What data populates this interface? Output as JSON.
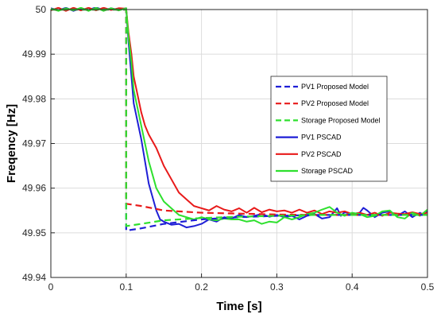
{
  "chart_data": {
    "type": "line",
    "xlabel": "Time [s]",
    "ylabel": "Freqency [Hz]",
    "xlim": [
      0,
      0.5
    ],
    "ylim": [
      49.94,
      50
    ],
    "xticks": [
      0,
      0.1,
      0.2,
      0.3,
      0.4,
      0.5
    ],
    "xtick_labels": [
      "0",
      "0.1",
      "0.2",
      "0.3",
      "0.4",
      "0.5"
    ],
    "yticks": [
      49.94,
      49.95,
      49.96,
      49.97,
      49.98,
      49.99,
      50
    ],
    "ytick_labels": [
      "49.94",
      "49.95",
      "49.96",
      "49.97",
      "49.98",
      "49.99",
      "50"
    ],
    "grid": true,
    "legend_position": "right",
    "series": [
      {
        "name": "PV1 Proposed Model",
        "color": "#1f1fd6",
        "dash": "dashed",
        "points": [
          [
            0,
            50
          ],
          [
            0.099,
            50
          ],
          [
            0.1,
            50
          ],
          [
            0.1,
            49.9505
          ],
          [
            0.12,
            49.951
          ],
          [
            0.15,
            49.952
          ],
          [
            0.2,
            49.953
          ],
          [
            0.25,
            49.9535
          ],
          [
            0.3,
            49.9538
          ],
          [
            0.35,
            49.954
          ],
          [
            0.4,
            49.954
          ],
          [
            0.45,
            49.954
          ],
          [
            0.5,
            49.954
          ]
        ]
      },
      {
        "name": "PV2 Proposed Model",
        "color": "#e81a1a",
        "dash": "dashed",
        "points": [
          [
            0,
            50
          ],
          [
            0.099,
            50
          ],
          [
            0.1,
            50
          ],
          [
            0.1,
            49.9565
          ],
          [
            0.12,
            49.956
          ],
          [
            0.15,
            49.955
          ],
          [
            0.2,
            49.9545
          ],
          [
            0.25,
            49.9543
          ],
          [
            0.3,
            49.9541
          ],
          [
            0.35,
            49.954
          ],
          [
            0.4,
            49.954
          ],
          [
            0.45,
            49.954
          ],
          [
            0.5,
            49.954
          ]
        ]
      },
      {
        "name": "Storage Proposed Model",
        "color": "#2ee02e",
        "dash": "dashed",
        "points": [
          [
            0,
            50
          ],
          [
            0.099,
            50
          ],
          [
            0.1,
            50
          ],
          [
            0.1,
            49.9515
          ],
          [
            0.12,
            49.952
          ],
          [
            0.15,
            49.9528
          ],
          [
            0.2,
            49.9533
          ],
          [
            0.25,
            49.9536
          ],
          [
            0.3,
            49.9538
          ],
          [
            0.35,
            49.954
          ],
          [
            0.4,
            49.954
          ],
          [
            0.45,
            49.954
          ],
          [
            0.5,
            49.954
          ]
        ]
      },
      {
        "name": "PV1 PSCAD",
        "color": "#1f1fd6",
        "dash": "solid",
        "points": [
          [
            0,
            50.0003
          ],
          [
            0.01,
            49.9998
          ],
          [
            0.02,
            50.0004
          ],
          [
            0.03,
            49.9997
          ],
          [
            0.04,
            50.0003
          ],
          [
            0.05,
            49.9999
          ],
          [
            0.06,
            50.0005
          ],
          [
            0.07,
            49.9998
          ],
          [
            0.08,
            50.0003
          ],
          [
            0.09,
            49.9999
          ],
          [
            0.1,
            50.0003
          ],
          [
            0.103,
            49.993
          ],
          [
            0.107,
            49.985
          ],
          [
            0.11,
            49.979
          ],
          [
            0.115,
            49.975
          ],
          [
            0.12,
            49.971
          ],
          [
            0.125,
            49.966
          ],
          [
            0.13,
            49.961
          ],
          [
            0.135,
            49.958
          ],
          [
            0.14,
            49.955
          ],
          [
            0.145,
            49.953
          ],
          [
            0.15,
            49.9525
          ],
          [
            0.16,
            49.9518
          ],
          [
            0.17,
            49.952
          ],
          [
            0.18,
            49.9512
          ],
          [
            0.19,
            49.9515
          ],
          [
            0.2,
            49.952
          ],
          [
            0.21,
            49.953
          ],
          [
            0.22,
            49.9525
          ],
          [
            0.23,
            49.9535
          ],
          [
            0.24,
            49.9532
          ],
          [
            0.25,
            49.954
          ],
          [
            0.26,
            49.9535
          ],
          [
            0.27,
            49.9538
          ],
          [
            0.28,
            49.9542
          ],
          [
            0.29,
            49.9536
          ],
          [
            0.3,
            49.954
          ],
          [
            0.31,
            49.9535
          ],
          [
            0.32,
            49.9538
          ],
          [
            0.33,
            49.953
          ],
          [
            0.34,
            49.9538
          ],
          [
            0.35,
            49.9542
          ],
          [
            0.36,
            49.9532
          ],
          [
            0.37,
            49.9535
          ],
          [
            0.38,
            49.9555
          ],
          [
            0.385,
            49.9538
          ],
          [
            0.39,
            49.9546
          ],
          [
            0.4,
            49.9542
          ],
          [
            0.41,
            49.9545
          ],
          [
            0.415,
            49.9556
          ],
          [
            0.42,
            49.955
          ],
          [
            0.43,
            49.9535
          ],
          [
            0.44,
            49.9545
          ],
          [
            0.45,
            49.9548
          ],
          [
            0.46,
            49.9538
          ],
          [
            0.47,
            49.9548
          ],
          [
            0.48,
            49.9535
          ],
          [
            0.49,
            49.9545
          ],
          [
            0.495,
            49.954
          ],
          [
            0.5,
            49.9548
          ]
        ]
      },
      {
        "name": "PV2 PSCAD",
        "color": "#e81a1a",
        "dash": "solid",
        "points": [
          [
            0,
            49.9998
          ],
          [
            0.01,
            50.0004
          ],
          [
            0.02,
            49.9997
          ],
          [
            0.03,
            50.0004
          ],
          [
            0.04,
            49.9998
          ],
          [
            0.05,
            50.0004
          ],
          [
            0.06,
            49.9998
          ],
          [
            0.07,
            50.0004
          ],
          [
            0.08,
            49.9999
          ],
          [
            0.09,
            50.0003
          ],
          [
            0.1,
            50.0002
          ],
          [
            0.103,
            49.995
          ],
          [
            0.107,
            49.99
          ],
          [
            0.11,
            49.985
          ],
          [
            0.115,
            49.981
          ],
          [
            0.12,
            49.977
          ],
          [
            0.125,
            49.974
          ],
          [
            0.13,
            49.972
          ],
          [
            0.14,
            49.969
          ],
          [
            0.15,
            49.965
          ],
          [
            0.16,
            49.962
          ],
          [
            0.17,
            49.959
          ],
          [
            0.18,
            49.9575
          ],
          [
            0.19,
            49.956
          ],
          [
            0.2,
            49.9555
          ],
          [
            0.21,
            49.955
          ],
          [
            0.22,
            49.956
          ],
          [
            0.23,
            49.9552
          ],
          [
            0.24,
            49.9548
          ],
          [
            0.25,
            49.9555
          ],
          [
            0.26,
            49.9545
          ],
          [
            0.27,
            49.9556
          ],
          [
            0.28,
            49.9546
          ],
          [
            0.29,
            49.9552
          ],
          [
            0.3,
            49.9548
          ],
          [
            0.31,
            49.955
          ],
          [
            0.32,
            49.9545
          ],
          [
            0.33,
            49.9552
          ],
          [
            0.34,
            49.9545
          ],
          [
            0.35,
            49.955
          ],
          [
            0.36,
            49.9542
          ],
          [
            0.37,
            49.9548
          ],
          [
            0.38,
            49.9545
          ],
          [
            0.39,
            49.9548
          ],
          [
            0.4,
            49.9542
          ],
          [
            0.41,
            49.9545
          ],
          [
            0.42,
            49.954
          ],
          [
            0.43,
            49.9545
          ],
          [
            0.44,
            49.9538
          ],
          [
            0.45,
            49.9545
          ],
          [
            0.46,
            49.9543
          ],
          [
            0.47,
            49.9542
          ],
          [
            0.48,
            49.9546
          ],
          [
            0.49,
            49.9542
          ],
          [
            0.5,
            49.9545
          ]
        ]
      },
      {
        "name": "Storage PSCAD",
        "color": "#2ee02e",
        "dash": "solid",
        "points": [
          [
            0,
            50.0002
          ],
          [
            0.01,
            49.9997
          ],
          [
            0.02,
            50.0003
          ],
          [
            0.03,
            49.9998
          ],
          [
            0.04,
            50.0004
          ],
          [
            0.05,
            49.9997
          ],
          [
            0.06,
            50.0004
          ],
          [
            0.07,
            49.9997
          ],
          [
            0.08,
            50.0003
          ],
          [
            0.09,
            49.9998
          ],
          [
            0.1,
            50.0003
          ],
          [
            0.103,
            49.994
          ],
          [
            0.107,
            49.988
          ],
          [
            0.11,
            49.982
          ],
          [
            0.115,
            49.978
          ],
          [
            0.12,
            49.974
          ],
          [
            0.125,
            49.97
          ],
          [
            0.13,
            49.966
          ],
          [
            0.135,
            49.963
          ],
          [
            0.14,
            49.96
          ],
          [
            0.15,
            49.957
          ],
          [
            0.16,
            49.9555
          ],
          [
            0.17,
            49.954
          ],
          [
            0.18,
            49.9535
          ],
          [
            0.19,
            49.953
          ],
          [
            0.2,
            49.9535
          ],
          [
            0.21,
            49.953
          ],
          [
            0.22,
            49.9528
          ],
          [
            0.23,
            49.9532
          ],
          [
            0.24,
            49.953
          ],
          [
            0.25,
            49.953
          ],
          [
            0.26,
            49.9525
          ],
          [
            0.27,
            49.9528
          ],
          [
            0.28,
            49.952
          ],
          [
            0.29,
            49.9525
          ],
          [
            0.3,
            49.9523
          ],
          [
            0.31,
            49.9535
          ],
          [
            0.32,
            49.953
          ],
          [
            0.33,
            49.9535
          ],
          [
            0.34,
            49.9542
          ],
          [
            0.35,
            49.9545
          ],
          [
            0.36,
            49.9552
          ],
          [
            0.37,
            49.9558
          ],
          [
            0.38,
            49.9545
          ],
          [
            0.39,
            49.9538
          ],
          [
            0.4,
            49.9545
          ],
          [
            0.41,
            49.9542
          ],
          [
            0.42,
            49.9535
          ],
          [
            0.43,
            49.9538
          ],
          [
            0.44,
            49.9548
          ],
          [
            0.45,
            49.955
          ],
          [
            0.46,
            49.9535
          ],
          [
            0.47,
            49.9532
          ],
          [
            0.48,
            49.9545
          ],
          [
            0.49,
            49.9538
          ],
          [
            0.5,
            49.9552
          ]
        ]
      }
    ]
  }
}
